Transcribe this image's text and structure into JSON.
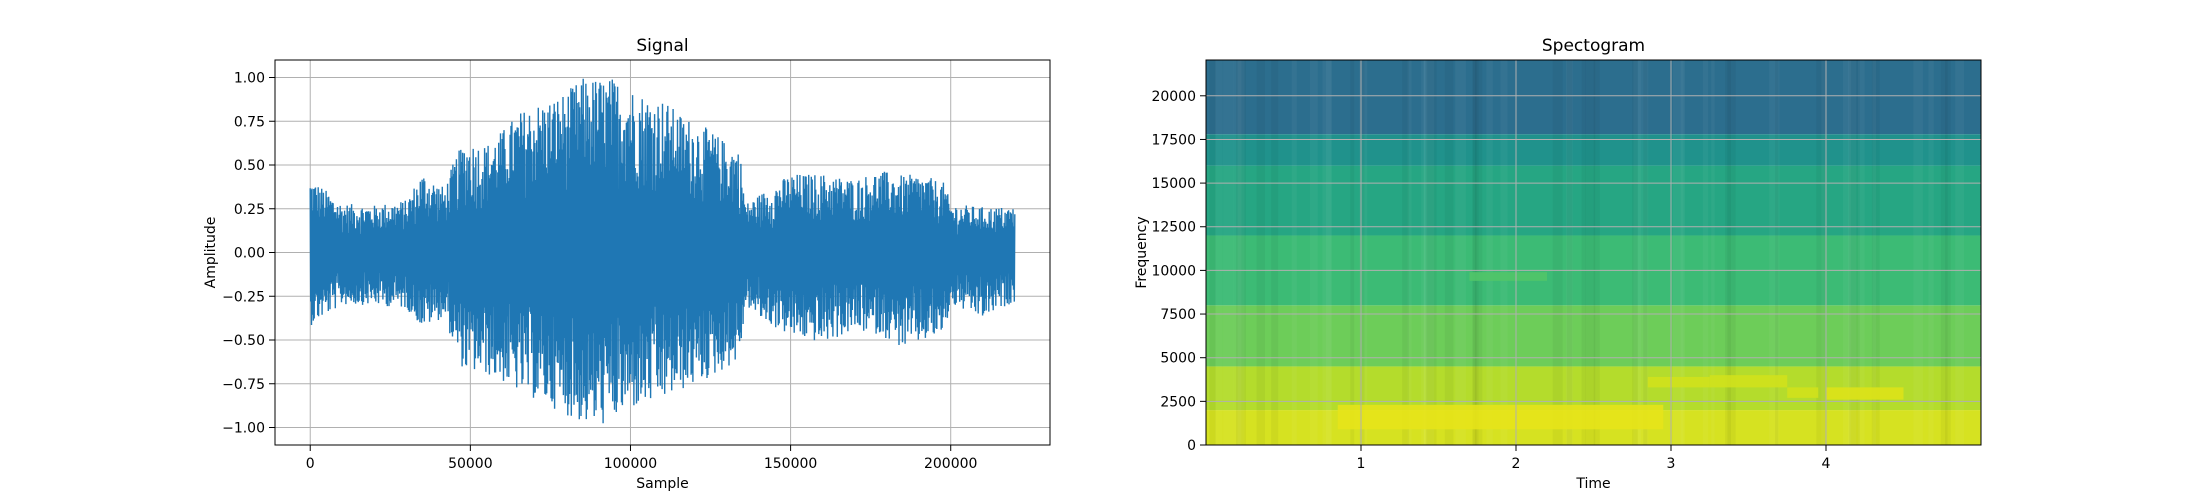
{
  "chart_data": [
    {
      "type": "line",
      "title": "Signal",
      "xlabel": "Sample",
      "ylabel": "Amplitude",
      "xlim": [
        -11000,
        231000
      ],
      "ylim": [
        -1.1,
        1.1
      ],
      "grid": true,
      "xticks": [
        0,
        50000,
        100000,
        150000,
        200000
      ],
      "xtick_labels": [
        "0",
        "50000",
        "100000",
        "150000",
        "200000"
      ],
      "yticks": [
        1.0,
        0.75,
        0.5,
        0.25,
        0.0,
        -0.25,
        -0.5,
        -0.75,
        -1.0
      ],
      "ytick_labels": [
        "1.00",
        "0.75",
        "0.50",
        "0.25",
        "0.00",
        "−0.25",
        "−0.50",
        "−0.75",
        "−1.00"
      ],
      "line_color": "#1f77b4",
      "envelope": {
        "x": [
          0,
          10000,
          20000,
          30000,
          35000,
          42000,
          45000,
          48000,
          55000,
          60000,
          65000,
          70000,
          75000,
          80000,
          85000,
          90000,
          95000,
          100000,
          105000,
          110000,
          115000,
          120000,
          125000,
          130000,
          134000,
          136000,
          140000,
          150000,
          160000,
          170000,
          178000,
          185000,
          190000,
          198000,
          200000,
          210000,
          220000
        ],
        "upper": [
          0.43,
          0.28,
          0.27,
          0.3,
          0.46,
          0.37,
          0.53,
          0.64,
          0.62,
          0.7,
          0.8,
          0.85,
          0.88,
          0.92,
          1.0,
          1.0,
          1.0,
          0.95,
          0.9,
          0.88,
          0.8,
          0.75,
          0.7,
          0.63,
          0.6,
          0.28,
          0.33,
          0.45,
          0.45,
          0.42,
          0.47,
          0.44,
          0.45,
          0.4,
          0.28,
          0.26,
          0.26
        ],
        "lower": [
          -0.42,
          -0.3,
          -0.3,
          -0.32,
          -0.43,
          -0.37,
          -0.55,
          -0.68,
          -0.7,
          -0.74,
          -0.8,
          -0.84,
          -0.88,
          -0.93,
          -0.98,
          -1.0,
          -0.96,
          -0.9,
          -0.88,
          -0.85,
          -0.8,
          -0.76,
          -0.72,
          -0.66,
          -0.62,
          -0.3,
          -0.38,
          -0.48,
          -0.52,
          -0.45,
          -0.47,
          -0.55,
          -0.52,
          -0.47,
          -0.3,
          -0.38,
          -0.28
        ]
      }
    },
    {
      "type": "heatmap",
      "title": "Spectogram",
      "xlabel": "Time",
      "ylabel": "Frequency",
      "xlim": [
        0,
        5.0
      ],
      "ylim": [
        0,
        22050
      ],
      "grid": true,
      "xticks": [
        1,
        2,
        3,
        4
      ],
      "xtick_labels": [
        "1",
        "2",
        "3",
        "4"
      ],
      "yticks": [
        0,
        2500,
        5000,
        7500,
        10000,
        12500,
        15000,
        17500,
        20000
      ],
      "ytick_labels": [
        "0",
        "2500",
        "5000",
        "7500",
        "10000",
        "12500",
        "15000",
        "17500",
        "20000"
      ],
      "colormap": "viridis",
      "freq_bands": [
        {
          "from": 0,
          "to": 2000,
          "color": "#d6e221"
        },
        {
          "from": 2000,
          "to": 4500,
          "color": "#b4dc2c"
        },
        {
          "from": 4500,
          "to": 8000,
          "color": "#6dcd59"
        },
        {
          "from": 8000,
          "to": 12000,
          "color": "#3cbb75"
        },
        {
          "from": 12000,
          "to": 16000,
          "color": "#26a683"
        },
        {
          "from": 16000,
          "to": 17800,
          "color": "#20928c"
        },
        {
          "from": 17800,
          "to": 22050,
          "color": "#2c6e8e"
        }
      ],
      "highlights": [
        {
          "t0": 0.85,
          "t1": 2.95,
          "f0": 900,
          "f1": 2300,
          "color": "#e8e419"
        },
        {
          "t0": 2.85,
          "t1": 3.25,
          "f0": 3300,
          "f1": 3900,
          "color": "#d2e21b"
        },
        {
          "t0": 3.25,
          "t1": 3.75,
          "f0": 3300,
          "f1": 4000,
          "color": "#d2e21b"
        },
        {
          "t0": 3.75,
          "t1": 3.95,
          "f0": 2700,
          "f1": 3300,
          "color": "#d2e21b"
        },
        {
          "t0": 4.0,
          "t1": 4.5,
          "f0": 2600,
          "f1": 3300,
          "color": "#dfe318"
        },
        {
          "t0": 1.7,
          "t1": 2.2,
          "f0": 9400,
          "f1": 9900,
          "color": "#52c569"
        }
      ]
    }
  ]
}
